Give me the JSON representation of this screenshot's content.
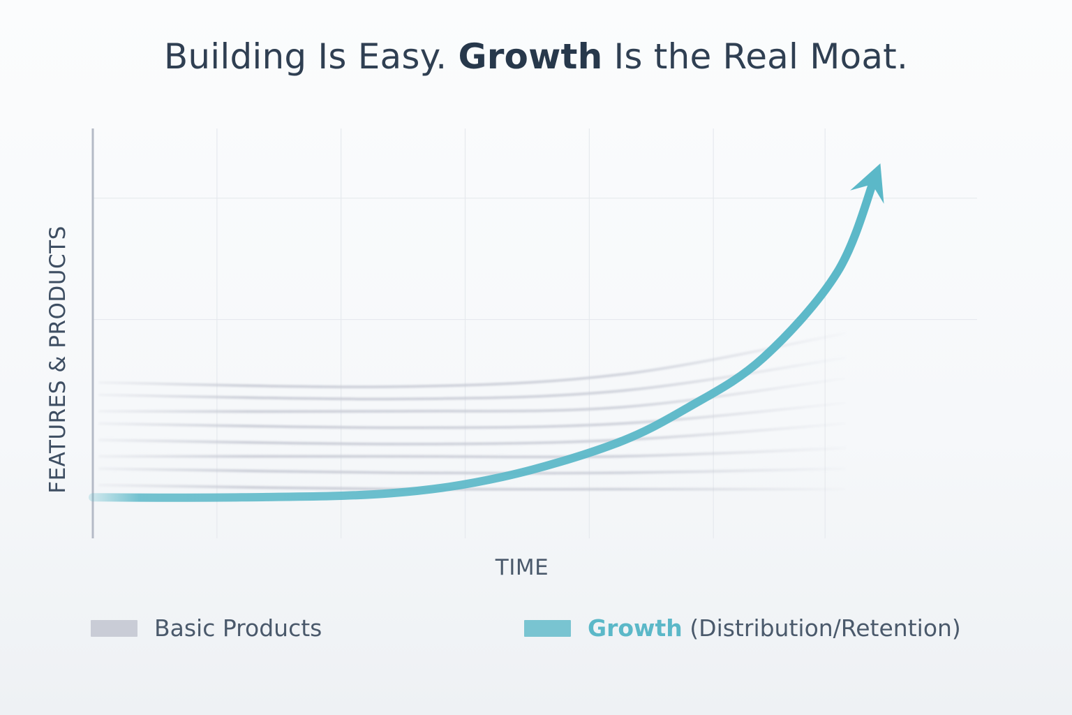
{
  "title": {
    "before": "Building Is Easy. ",
    "bold": "Growth",
    "after": " Is the Real Moat."
  },
  "colors": {
    "growth": "#5bb8c8",
    "basic": "#c9ccd6",
    "axis": "#b4bac6",
    "grid": "#e6e9ee",
    "text": "#2f3f52"
  },
  "chart_data": {
    "type": "line",
    "title": "Building Is Easy. Growth Is the Real Moat.",
    "xlabel": "TIME",
    "ylabel": "FEATURES & PRODUCTS",
    "grid": true,
    "legend_position": "bottom",
    "series": [
      {
        "name": "Basic Products",
        "kind": "flat-lines",
        "color": "#c9ccd6",
        "lines": [
          {
            "x": [
              0,
              0.4,
              0.7,
              1.0
            ],
            "y": [
              0.38,
              0.37,
              0.4,
              0.5
            ]
          },
          {
            "x": [
              0,
              0.4,
              0.7,
              1.0
            ],
            "y": [
              0.35,
              0.34,
              0.36,
              0.44
            ]
          },
          {
            "x": [
              0,
              0.4,
              0.7,
              1.0
            ],
            "y": [
              0.31,
              0.31,
              0.32,
              0.39
            ]
          },
          {
            "x": [
              0,
              0.4,
              0.7,
              1.0
            ],
            "y": [
              0.28,
              0.27,
              0.28,
              0.33
            ]
          },
          {
            "x": [
              0,
              0.4,
              0.7,
              1.0
            ],
            "y": [
              0.24,
              0.23,
              0.24,
              0.28
            ]
          },
          {
            "x": [
              0,
              0.4,
              0.7,
              1.0
            ],
            "y": [
              0.2,
              0.2,
              0.2,
              0.22
            ]
          },
          {
            "x": [
              0,
              0.4,
              0.7,
              1.0
            ],
            "y": [
              0.17,
              0.16,
              0.16,
              0.17
            ]
          },
          {
            "x": [
              0,
              0.4,
              0.7,
              1.0
            ],
            "y": [
              0.13,
              0.12,
              0.12,
              0.12
            ]
          }
        ]
      },
      {
        "name": "Growth",
        "color": "#5bb8c8",
        "x": [
          0,
          0.2,
          0.4,
          0.55,
          0.7,
          0.8,
          0.9,
          1.0,
          1.05
        ],
        "y": [
          0.1,
          0.1,
          0.11,
          0.15,
          0.23,
          0.32,
          0.44,
          0.65,
          0.88
        ]
      }
    ],
    "legend": [
      {
        "label": "Basic Products"
      },
      {
        "label_bold": "Growth",
        "label_rest": " (Distribution/Retention)"
      }
    ]
  }
}
